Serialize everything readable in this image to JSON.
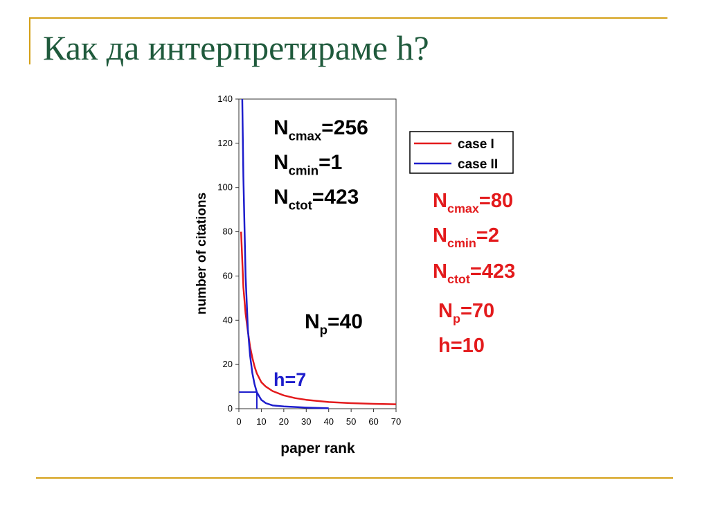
{
  "slide": {
    "title": "Как да интерпретираме h?"
  },
  "chart_data": {
    "type": "line",
    "xlabel": "paper rank",
    "ylabel": "number of citations",
    "xlim": [
      0,
      70
    ],
    "ylim": [
      0,
      140
    ],
    "xticks": [
      0,
      10,
      20,
      30,
      40,
      50,
      60,
      70
    ],
    "yticks": [
      0,
      20,
      40,
      60,
      80,
      100,
      120,
      140
    ],
    "grid": false,
    "legend_position": "top-right outside",
    "series": [
      {
        "name": "case I",
        "color": "#e31a1c",
        "x": [
          1,
          2,
          3,
          4,
          5,
          6,
          7,
          8,
          10,
          12,
          15,
          20,
          25,
          30,
          40,
          50,
          60,
          70
        ],
        "y": [
          80,
          55,
          43,
          35,
          28,
          23,
          19,
          16,
          12,
          10,
          8,
          6,
          4.8,
          4,
          3,
          2.5,
          2.2,
          2
        ]
      },
      {
        "name": "case II",
        "color": "#1d1dcc",
        "x": [
          1.5,
          2,
          3,
          4,
          5,
          6,
          7,
          8,
          10,
          12,
          15,
          20,
          30,
          40
        ],
        "y": [
          140,
          105,
          60,
          36,
          24,
          16,
          11,
          7.5,
          4,
          2.5,
          1.5,
          1,
          0.5,
          0.2
        ]
      }
    ],
    "h_marker": {
      "x": 8,
      "y": 7.5,
      "label": "h=7",
      "color": "#1d1dcc"
    },
    "annotations": {
      "case2_params": {
        "ncmax_sub": "cmax",
        "ncmax_val": "=256",
        "ncmin_sub": "cmin",
        "ncmin_val": "=1",
        "nctot_sub": "ctot",
        "nctot_val": "=423",
        "np_sub": "p",
        "np_val": "=40"
      },
      "case1_params": {
        "ncmax_sub": "cmax",
        "ncmax_val": "=80",
        "ncmin_sub": "cmin",
        "ncmin_val": "=2",
        "nctot_sub": "ctot",
        "nctot_val": "=423",
        "np_sub": "p",
        "np_val": "=70",
        "h": "h=10"
      }
    }
  }
}
